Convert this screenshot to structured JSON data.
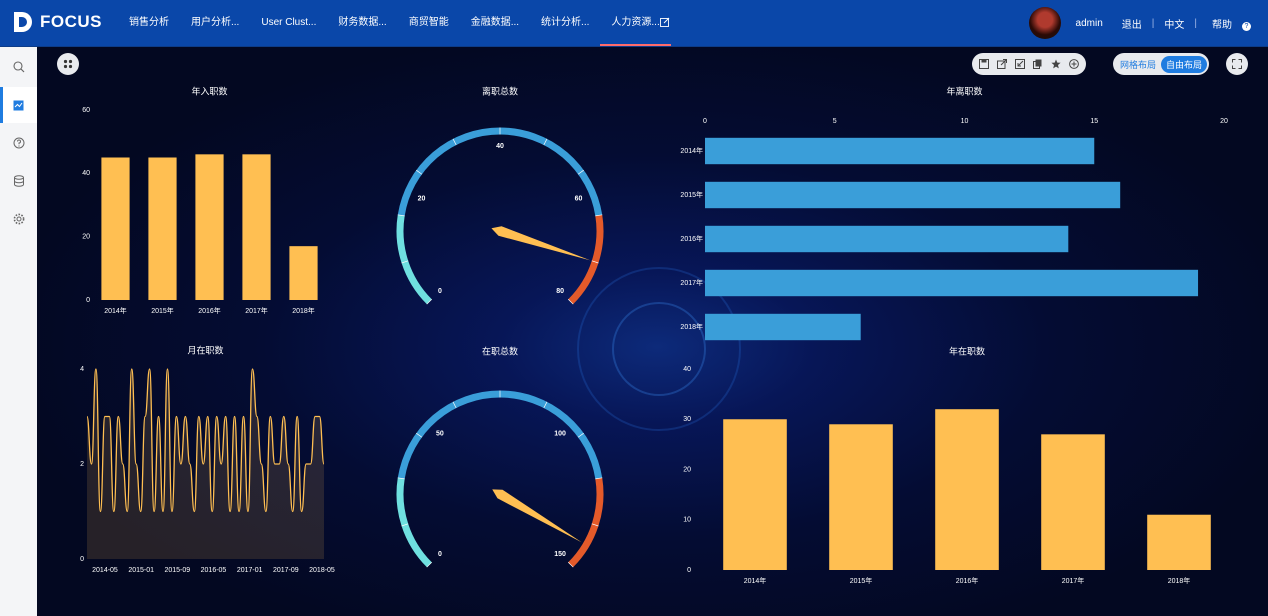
{
  "app": {
    "logo_text": "FOCUS"
  },
  "nav": {
    "items": [
      {
        "label": "销售分析"
      },
      {
        "label": "用户分析..."
      },
      {
        "label": "User Clust..."
      },
      {
        "label": "财务数据..."
      },
      {
        "label": "商贸智能"
      },
      {
        "label": "金融数据..."
      },
      {
        "label": "统计分析..."
      },
      {
        "label": "人力资源..."
      }
    ],
    "active_index": 7
  },
  "user": {
    "name": "admin",
    "logout": "退出",
    "lang": "中文",
    "help": "帮助",
    "help_glyph": "?"
  },
  "toolbar": {
    "layout_grid": "网格布局",
    "layout_free": "自由布局",
    "active_layout": "自由布局"
  },
  "colors": {
    "topbar": "#0a47a9",
    "bar_yellow": "#ffbf52",
    "bar_blue": "#3a9ed9",
    "gauge_cyan": "#6fe0e0",
    "gauge_blue": "#3a9ed9",
    "gauge_red": "#e45a2a"
  },
  "chart_data": [
    {
      "id": "hires",
      "type": "bar",
      "title": "年入职数",
      "categories": [
        "2014年",
        "2015年",
        "2016年",
        "2017年",
        "2018年"
      ],
      "values": [
        45,
        45,
        46,
        46,
        17
      ],
      "ylim": [
        0,
        60
      ],
      "yticks": [
        "0",
        "20",
        "40",
        "60"
      ]
    },
    {
      "id": "leaves_gauge",
      "type": "gauge",
      "title": "离职总数",
      "min": 0,
      "max": 80,
      "value": 72,
      "tick_labels": [
        "0",
        "20",
        "40",
        "60",
        "80"
      ],
      "bands": [
        {
          "to": 0.2,
          "color": "#6fe0e0"
        },
        {
          "to": 0.8,
          "color": "#3a9ed9"
        },
        {
          "to": 1,
          "color": "#e45a2a"
        }
      ]
    },
    {
      "id": "annual_leaves",
      "type": "bar",
      "orientation": "horizontal",
      "title": "年离职数",
      "categories": [
        "2014年",
        "2015年",
        "2016年",
        "2017年",
        "2018年"
      ],
      "values": [
        15,
        16,
        14,
        19,
        6
      ],
      "xlim": [
        0,
        20
      ],
      "xticks": [
        "0",
        "5",
        "10",
        "15",
        "20"
      ]
    },
    {
      "id": "monthly_active",
      "type": "area",
      "title": "月在职数",
      "x_tick_labels": [
        "2014-05",
        "2015-01",
        "2015-09",
        "2016-05",
        "2017-01",
        "2017-09",
        "2018-05"
      ],
      "ylim": [
        0,
        4
      ],
      "yticks": [
        "0",
        "2",
        "4"
      ],
      "values": [
        3,
        2,
        4,
        1,
        3,
        3,
        1,
        3,
        2,
        1,
        4,
        2,
        1,
        3,
        4,
        1,
        3,
        1,
        4,
        1,
        3,
        2,
        3,
        2,
        1,
        3,
        2,
        3,
        1,
        3,
        2,
        3,
        1,
        3,
        1,
        3,
        1,
        4,
        3,
        2,
        1,
        3,
        2,
        2,
        3,
        2,
        1,
        3,
        1,
        2,
        2,
        3,
        3,
        2
      ]
    },
    {
      "id": "active_gauge",
      "type": "gauge",
      "title": "在职总数",
      "min": 0,
      "max": 150,
      "value": 142,
      "tick_labels": [
        "0",
        "50",
        "100",
        "150"
      ],
      "bands": [
        {
          "to": 0.2,
          "color": "#6fe0e0"
        },
        {
          "to": 0.8,
          "color": "#3a9ed9"
        },
        {
          "to": 1,
          "color": "#e45a2a"
        }
      ]
    },
    {
      "id": "annual_active",
      "type": "bar",
      "title": "年在职数",
      "categories": [
        "2014年",
        "2015年",
        "2016年",
        "2017年",
        "2018年"
      ],
      "values": [
        30,
        29,
        32,
        27,
        11
      ],
      "ylim": [
        0,
        40
      ],
      "yticks": [
        "0",
        "10",
        "20",
        "30",
        "40"
      ]
    }
  ]
}
